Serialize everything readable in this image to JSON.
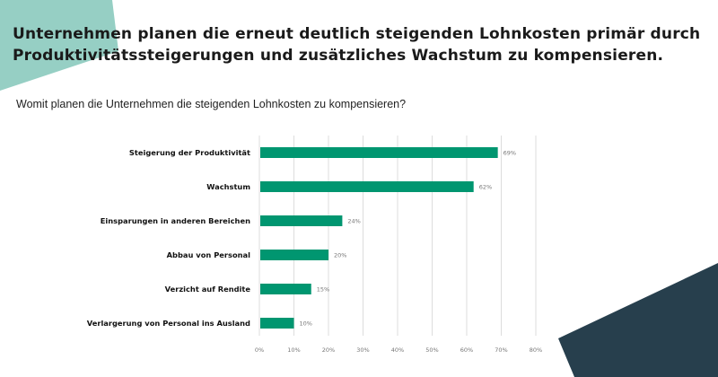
{
  "header": {
    "title_line1": "Unternehmen planen die erneut deutlich steigenden Lohnkosten primär durch",
    "title_line2": "Produktivitätssteigerungen und zusätzliches Wachstum zu kompensieren.",
    "question": "Womit planen die Unternehmen die steigenden Lohnkosten zu kompensieren?"
  },
  "colors": {
    "bar": "#009670",
    "accent_teal": "#96cfc4",
    "accent_dark": "#273f4d",
    "grid": "#dddddd"
  },
  "chart_data": {
    "type": "bar",
    "orientation": "horizontal",
    "categories": [
      "Steigerung der Produktivität",
      "Wachstum",
      "Einsparungen in anderen Bereichen",
      "Abbau von Personal",
      "Verzicht auf Rendite",
      "Verlargerung von Personal ins Ausland"
    ],
    "values": [
      69,
      62,
      24,
      20,
      15,
      10
    ],
    "value_labels": [
      "69%",
      "62%",
      "24%",
      "20%",
      "15%",
      "10%"
    ],
    "xlim": [
      0,
      80
    ],
    "xticks": [
      "0%",
      "10%",
      "20%",
      "30%",
      "40%",
      "50%",
      "60%",
      "70%",
      "80%"
    ],
    "grid": true,
    "unit": "%"
  }
}
